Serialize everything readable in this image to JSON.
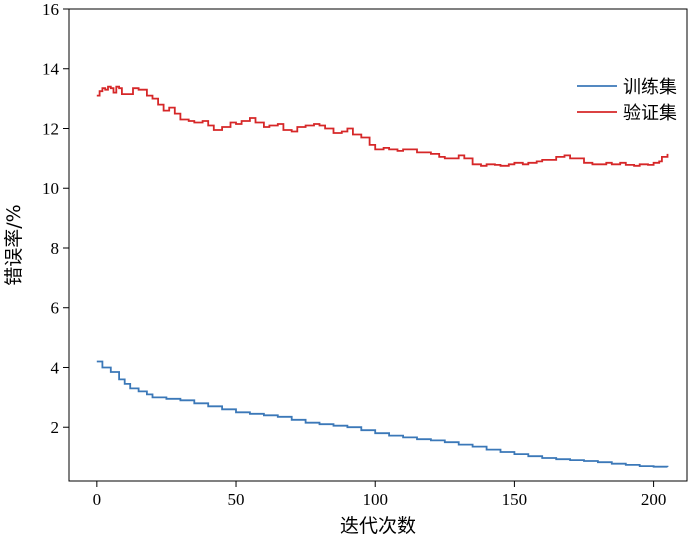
{
  "chart_data": {
    "type": "line",
    "xlabel": "迭代次数",
    "ylabel": "错误率/%",
    "xlim": [
      -10,
      212
    ],
    "ylim": [
      0.2,
      16
    ],
    "xticks": [
      0,
      50,
      100,
      150,
      200
    ],
    "yticks": [
      2,
      4,
      6,
      8,
      10,
      12,
      14,
      16
    ],
    "grid": false,
    "legend_position": "upper-right",
    "series": [
      {
        "name": "训练集",
        "color": "#3b78b8",
        "x": [
          0,
          2,
          5,
          8,
          10,
          12,
          15,
          18,
          20,
          25,
          30,
          35,
          40,
          45,
          50,
          55,
          60,
          65,
          70,
          75,
          80,
          85,
          90,
          95,
          100,
          105,
          110,
          115,
          120,
          125,
          130,
          135,
          140,
          145,
          150,
          155,
          160,
          165,
          170,
          175,
          180,
          185,
          190,
          195,
          200,
          205
        ],
        "y": [
          4.2,
          4.0,
          3.85,
          3.6,
          3.45,
          3.3,
          3.2,
          3.1,
          3.0,
          2.95,
          2.9,
          2.8,
          2.7,
          2.6,
          2.5,
          2.45,
          2.4,
          2.35,
          2.25,
          2.15,
          2.1,
          2.05,
          2.0,
          1.9,
          1.8,
          1.72,
          1.66,
          1.6,
          1.56,
          1.5,
          1.42,
          1.35,
          1.25,
          1.17,
          1.1,
          1.03,
          0.97,
          0.93,
          0.9,
          0.87,
          0.83,
          0.78,
          0.74,
          0.7,
          0.68,
          0.67
        ]
      },
      {
        "name": "验证集",
        "color": "#d62728",
        "x": [
          0,
          1,
          2,
          3,
          4,
          5,
          6,
          7,
          8,
          9,
          10,
          12,
          13,
          15,
          16,
          18,
          20,
          22,
          24,
          26,
          28,
          30,
          33,
          35,
          38,
          40,
          42,
          45,
          48,
          50,
          52,
          55,
          57,
          60,
          62,
          65,
          67,
          70,
          72,
          75,
          78,
          80,
          82,
          85,
          88,
          90,
          92,
          95,
          98,
          100,
          103,
          105,
          108,
          110,
          115,
          120,
          123,
          125,
          128,
          130,
          132,
          135,
          138,
          140,
          143,
          145,
          148,
          150,
          153,
          155,
          158,
          160,
          165,
          168,
          170,
          173,
          175,
          178,
          180,
          183,
          185,
          188,
          190,
          193,
          195,
          198,
          200,
          202,
          203,
          205
        ],
        "y": [
          13.1,
          13.25,
          13.35,
          13.3,
          13.4,
          13.35,
          13.2,
          13.4,
          13.35,
          13.15,
          13.15,
          13.15,
          13.35,
          13.3,
          13.3,
          13.1,
          13.0,
          12.8,
          12.6,
          12.7,
          12.5,
          12.3,
          12.25,
          12.2,
          12.25,
          12.1,
          11.95,
          12.05,
          12.2,
          12.15,
          12.25,
          12.35,
          12.2,
          12.05,
          12.1,
          12.15,
          11.95,
          11.9,
          12.05,
          12.1,
          12.15,
          12.1,
          12.0,
          11.85,
          11.9,
          12.0,
          11.8,
          11.7,
          11.45,
          11.3,
          11.35,
          11.3,
          11.25,
          11.3,
          11.2,
          11.15,
          11.05,
          11.0,
          11.0,
          11.1,
          11.0,
          10.8,
          10.75,
          10.8,
          10.78,
          10.75,
          10.8,
          10.85,
          10.8,
          10.85,
          10.9,
          10.95,
          11.05,
          11.1,
          11.0,
          11.0,
          10.85,
          10.8,
          10.8,
          10.85,
          10.8,
          10.85,
          10.78,
          10.75,
          10.8,
          10.78,
          10.85,
          10.9,
          11.05,
          11.15
        ]
      }
    ]
  }
}
